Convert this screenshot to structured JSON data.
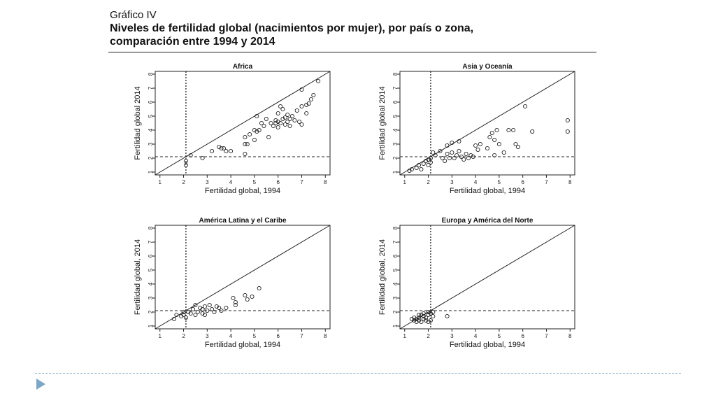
{
  "heading": {
    "label": "Gráfico IV",
    "title_line1": "Niveles de fertilidad global (nacimientos por mujer), por país o zona,",
    "title_line2": "comparación entre 1994 y 2014"
  },
  "colors": {
    "ink": "#222222",
    "divider": "#8fb2c9",
    "bullet": "#7da7c7"
  },
  "chart_data": [
    {
      "type": "scatter",
      "title": "Africa",
      "xlabel": "Fertilidad global, 1994",
      "ylabel": "Fertilidad global 2014",
      "xlim": [
        0.8,
        8.2
      ],
      "ylim": [
        0.8,
        8.2
      ],
      "xticks": [
        1,
        2,
        3,
        4,
        5,
        6,
        7,
        8
      ],
      "yticks": [
        1,
        2,
        3,
        4,
        5,
        6,
        7,
        8
      ],
      "reference_x": 2.1,
      "reference_y": 2.1,
      "identity_line": true,
      "points": [
        [
          2.1,
          1.5
        ],
        [
          2.1,
          1.8
        ],
        [
          2.3,
          2.2
        ],
        [
          2.8,
          2.0
        ],
        [
          3.2,
          2.5
        ],
        [
          3.5,
          2.8
        ],
        [
          3.6,
          2.7
        ],
        [
          3.7,
          2.7
        ],
        [
          3.8,
          2.5
        ],
        [
          4.0,
          2.5
        ],
        [
          4.6,
          2.3
        ],
        [
          4.6,
          3.0
        ],
        [
          4.6,
          3.5
        ],
        [
          4.7,
          3.0
        ],
        [
          4.8,
          3.7
        ],
        [
          5.0,
          3.3
        ],
        [
          5.0,
          4.0
        ],
        [
          5.1,
          3.9
        ],
        [
          5.1,
          5.0
        ],
        [
          5.2,
          4.0
        ],
        [
          5.3,
          4.5
        ],
        [
          5.4,
          4.3
        ],
        [
          5.5,
          4.8
        ],
        [
          5.6,
          3.5
        ],
        [
          5.7,
          4.5
        ],
        [
          5.8,
          4.3
        ],
        [
          5.9,
          4.5
        ],
        [
          5.9,
          4.7
        ],
        [
          6.0,
          4.2
        ],
        [
          6.0,
          4.6
        ],
        [
          6.0,
          5.2
        ],
        [
          6.1,
          4.5
        ],
        [
          6.1,
          5.7
        ],
        [
          6.2,
          4.8
        ],
        [
          6.2,
          5.5
        ],
        [
          6.3,
          4.4
        ],
        [
          6.3,
          4.9
        ],
        [
          6.4,
          4.6
        ],
        [
          6.4,
          5.1
        ],
        [
          6.5,
          4.3
        ],
        [
          6.5,
          4.8
        ],
        [
          6.6,
          5.0
        ],
        [
          6.7,
          4.7
        ],
        [
          6.8,
          5.4
        ],
        [
          6.9,
          4.6
        ],
        [
          7.0,
          4.4
        ],
        [
          7.0,
          5.7
        ],
        [
          7.0,
          6.9
        ],
        [
          7.2,
          5.8
        ],
        [
          7.3,
          5.9
        ],
        [
          7.4,
          6.2
        ],
        [
          7.5,
          6.5
        ],
        [
          7.7,
          7.5
        ],
        [
          7.2,
          5.2
        ]
      ]
    },
    {
      "type": "scatter",
      "title": "Asia y Oceanía",
      "xlabel": "Fertilidad global, 1994",
      "ylabel": "Fertilidad global 2014",
      "xlim": [
        0.8,
        8.2
      ],
      "ylim": [
        0.8,
        8.2
      ],
      "xticks": [
        1,
        2,
        3,
        4,
        5,
        6,
        7,
        8
      ],
      "yticks": [
        1,
        2,
        3,
        4,
        5,
        6,
        7,
        8
      ],
      "reference_x": 2.1,
      "reference_y": 2.1,
      "identity_line": true,
      "points": [
        [
          1.2,
          1.1
        ],
        [
          1.3,
          1.2
        ],
        [
          1.5,
          1.3
        ],
        [
          1.6,
          1.5
        ],
        [
          1.7,
          1.2
        ],
        [
          1.8,
          1.6
        ],
        [
          1.9,
          1.8
        ],
        [
          2.0,
          1.9
        ],
        [
          2.0,
          1.5
        ],
        [
          2.1,
          2.0
        ],
        [
          2.1,
          1.7
        ],
        [
          2.2,
          2.4
        ],
        [
          2.3,
          2.2
        ],
        [
          2.5,
          2.5
        ],
        [
          2.6,
          2.0
        ],
        [
          2.7,
          1.8
        ],
        [
          2.8,
          2.3
        ],
        [
          2.8,
          2.9
        ],
        [
          2.9,
          2.0
        ],
        [
          3.0,
          2.4
        ],
        [
          3.1,
          2.0
        ],
        [
          3.2,
          2.2
        ],
        [
          3.3,
          2.5
        ],
        [
          3.4,
          2.1
        ],
        [
          3.5,
          1.9
        ],
        [
          3.6,
          2.3
        ],
        [
          3.7,
          2.0
        ],
        [
          3.8,
          2.2
        ],
        [
          3.9,
          2.1
        ],
        [
          4.0,
          2.9
        ],
        [
          4.1,
          2.6
        ],
        [
          4.2,
          3.0
        ],
        [
          4.5,
          2.7
        ],
        [
          4.6,
          3.5
        ],
        [
          4.7,
          3.8
        ],
        [
          4.8,
          2.2
        ],
        [
          4.8,
          3.3
        ],
        [
          4.9,
          4.0
        ],
        [
          5.0,
          3.0
        ],
        [
          5.2,
          2.4
        ],
        [
          5.4,
          4.0
        ],
        [
          5.6,
          4.0
        ],
        [
          5.7,
          3.0
        ],
        [
          5.8,
          2.8
        ],
        [
          6.1,
          5.7
        ],
        [
          6.4,
          3.9
        ],
        [
          7.9,
          4.7
        ],
        [
          7.9,
          3.9
        ],
        [
          3.0,
          3.1
        ],
        [
          3.3,
          3.2
        ]
      ]
    },
    {
      "type": "scatter",
      "title": "América Latina y el Caribe",
      "xlabel": "Fertilidad global, 1994",
      "ylabel": "Fertilidad global, 2014",
      "xlim": [
        0.8,
        8.2
      ],
      "ylim": [
        0.8,
        8.2
      ],
      "xticks": [
        1,
        2,
        3,
        4,
        5,
        6,
        7,
        8
      ],
      "yticks": [
        1,
        2,
        3,
        4,
        5,
        6,
        7,
        8
      ],
      "reference_x": 2.1,
      "reference_y": 2.1,
      "identity_line": true,
      "points": [
        [
          1.6,
          1.5
        ],
        [
          1.7,
          1.8
        ],
        [
          1.9,
          1.7
        ],
        [
          2.0,
          2.0
        ],
        [
          2.0,
          1.8
        ],
        [
          2.1,
          1.6
        ],
        [
          2.2,
          2.0
        ],
        [
          2.3,
          1.9
        ],
        [
          2.4,
          2.2
        ],
        [
          2.5,
          2.5
        ],
        [
          2.6,
          2.0
        ],
        [
          2.7,
          2.3
        ],
        [
          2.8,
          1.9
        ],
        [
          2.8,
          2.2
        ],
        [
          2.9,
          2.4
        ],
        [
          3.0,
          2.1
        ],
        [
          3.1,
          2.5
        ],
        [
          3.2,
          2.2
        ],
        [
          3.3,
          2.0
        ],
        [
          3.4,
          2.4
        ],
        [
          3.5,
          2.3
        ],
        [
          3.6,
          2.1
        ],
        [
          3.8,
          2.3
        ],
        [
          4.1,
          3.0
        ],
        [
          4.2,
          2.7
        ],
        [
          4.2,
          2.5
        ],
        [
          4.6,
          3.2
        ],
        [
          4.7,
          2.9
        ],
        [
          4.9,
          3.1
        ],
        [
          5.2,
          3.7
        ],
        [
          2.9,
          1.8
        ],
        [
          2.5,
          1.8
        ]
      ]
    },
    {
      "type": "scatter",
      "title": "Europa y América del Norte",
      "xlabel": "Fertilidad global, 1994",
      "ylabel": "Fertilidad global, 2014",
      "xlim": [
        0.8,
        8.2
      ],
      "ylim": [
        0.8,
        8.2
      ],
      "xticks": [
        1,
        2,
        3,
        4,
        5,
        6,
        7,
        8
      ],
      "yticks": [
        1,
        2,
        3,
        4,
        5,
        6,
        7,
        8
      ],
      "reference_x": 2.1,
      "reference_y": 2.1,
      "identity_line": true,
      "points": [
        [
          1.3,
          1.5
        ],
        [
          1.4,
          1.4
        ],
        [
          1.4,
          1.6
        ],
        [
          1.5,
          1.3
        ],
        [
          1.5,
          1.5
        ],
        [
          1.6,
          1.4
        ],
        [
          1.6,
          1.6
        ],
        [
          1.7,
          1.3
        ],
        [
          1.7,
          1.8
        ],
        [
          1.8,
          1.5
        ],
        [
          1.8,
          1.9
        ],
        [
          1.9,
          1.6
        ],
        [
          1.9,
          1.4
        ],
        [
          2.0,
          1.8
        ],
        [
          2.0,
          2.0
        ],
        [
          2.1,
          1.4
        ],
        [
          2.1,
          1.9
        ],
        [
          2.2,
          1.7
        ],
        [
          2.2,
          2.0
        ],
        [
          2.0,
          1.3
        ],
        [
          1.8,
          1.7
        ],
        [
          1.6,
          1.8
        ],
        [
          2.8,
          1.7
        ]
      ]
    }
  ]
}
